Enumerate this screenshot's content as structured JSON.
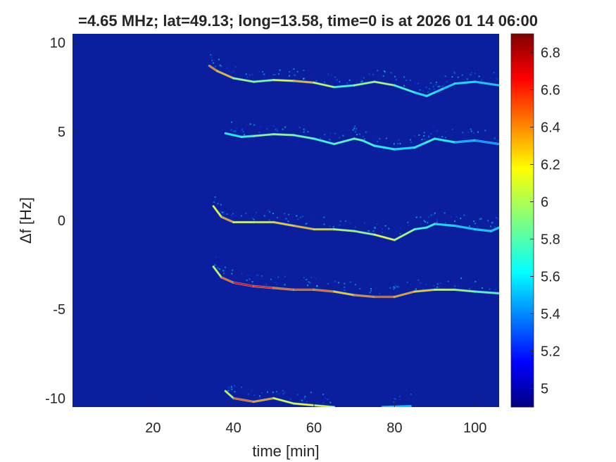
{
  "chart_data": {
    "type": "heatmap",
    "title": "=4.65 MHz;  lat=49.13; long=13.58, time=0 is at 2026 01 14 06:00",
    "xlabel": "time [min]",
    "ylabel": "Δf [Hz]",
    "xlim": [
      0,
      106
    ],
    "ylim": [
      -10.5,
      10.5
    ],
    "x_ticks": [
      20,
      40,
      60,
      80,
      100
    ],
    "y_ticks": [
      -10,
      -5,
      0,
      5,
      10
    ],
    "colorbar": {
      "range": [
        4.9,
        6.9
      ],
      "ticks": [
        5,
        5.2,
        5.4,
        5.6,
        5.8,
        6,
        6.2,
        6.4,
        6.6,
        6.8
      ],
      "colormap": "jet",
      "background_color": "#0b1f9e"
    },
    "traces": [
      {
        "name": "trace-top",
        "points": [
          [
            34,
            8.7
          ],
          [
            36,
            8.4
          ],
          [
            40,
            8.0
          ],
          [
            45,
            7.8
          ],
          [
            50,
            7.9
          ],
          [
            55,
            7.85
          ],
          [
            60,
            7.75
          ],
          [
            65,
            7.5
          ],
          [
            70,
            7.6
          ],
          [
            75,
            7.8
          ],
          [
            80,
            7.6
          ],
          [
            85,
            7.2
          ],
          [
            88,
            7.0
          ],
          [
            90,
            7.2
          ],
          [
            92,
            7.4
          ],
          [
            95,
            7.7
          ],
          [
            100,
            7.8
          ],
          [
            106,
            7.6
          ]
        ],
        "intensity": [
          6.3,
          6.5,
          6.1,
          5.8,
          6.0,
          6.2,
          6.4,
          5.7,
          5.8,
          6.1,
          5.9,
          5.6,
          5.6,
          5.7,
          5.5,
          5.6,
          5.6,
          5.5
        ]
      },
      {
        "name": "trace-upper-mid",
        "points": [
          [
            38,
            4.9
          ],
          [
            42,
            4.7
          ],
          [
            45,
            4.75
          ],
          [
            50,
            4.85
          ],
          [
            55,
            4.8
          ],
          [
            60,
            4.6
          ],
          [
            65,
            4.3
          ],
          [
            70,
            4.6
          ],
          [
            72,
            4.5
          ],
          [
            75,
            4.2
          ],
          [
            80,
            4.0
          ],
          [
            85,
            4.1
          ],
          [
            88,
            4.4
          ],
          [
            90,
            4.6
          ],
          [
            95,
            4.4
          ],
          [
            100,
            4.5
          ],
          [
            106,
            4.3
          ]
        ],
        "intensity": [
          5.6,
          5.7,
          5.8,
          6.0,
          5.9,
          5.8,
          5.7,
          5.9,
          5.8,
          5.7,
          5.6,
          5.6,
          5.7,
          5.8,
          5.5,
          5.5,
          5.4
        ]
      },
      {
        "name": "trace-center",
        "points": [
          [
            35,
            0.8
          ],
          [
            37,
            0.2
          ],
          [
            40,
            -0.1
          ],
          [
            45,
            -0.1
          ],
          [
            50,
            -0.1
          ],
          [
            55,
            -0.3
          ],
          [
            60,
            -0.5
          ],
          [
            65,
            -0.5
          ],
          [
            70,
            -0.6
          ],
          [
            75,
            -0.8
          ],
          [
            80,
            -1.1
          ],
          [
            85,
            -0.5
          ],
          [
            88,
            -0.4
          ],
          [
            90,
            -0.2
          ],
          [
            95,
            -0.3
          ],
          [
            100,
            -0.5
          ],
          [
            104,
            -0.6
          ],
          [
            106,
            -0.4
          ]
        ],
        "intensity": [
          5.8,
          6.5,
          6.2,
          6.1,
          6.3,
          6.2,
          6.4,
          6.1,
          5.9,
          6.0,
          6.3,
          5.7,
          5.8,
          5.6,
          5.6,
          5.5,
          5.6,
          5.5
        ]
      },
      {
        "name": "trace-lower-mid",
        "points": [
          [
            35,
            -2.6
          ],
          [
            37,
            -3.2
          ],
          [
            40,
            -3.5
          ],
          [
            45,
            -3.7
          ],
          [
            50,
            -3.8
          ],
          [
            55,
            -3.9
          ],
          [
            60,
            -3.9
          ],
          [
            65,
            -4.0
          ],
          [
            70,
            -4.2
          ],
          [
            75,
            -4.3
          ],
          [
            80,
            -4.3
          ],
          [
            85,
            -4.0
          ],
          [
            90,
            -3.9
          ],
          [
            95,
            -3.9
          ],
          [
            100,
            -4.0
          ],
          [
            106,
            -4.1
          ]
        ],
        "intensity": [
          5.8,
          6.3,
          6.6,
          6.7,
          6.5,
          6.4,
          6.6,
          6.3,
          6.2,
          6.6,
          6.4,
          6.3,
          6.2,
          6.0,
          5.9,
          5.7
        ]
      },
      {
        "name": "trace-bottom",
        "points": [
          [
            38,
            -9.6
          ],
          [
            40,
            -10.0
          ],
          [
            45,
            -10.2
          ],
          [
            50,
            -10.0
          ],
          [
            55,
            -10.3
          ],
          [
            60,
            -10.4
          ],
          [
            65,
            -10.5
          ]
        ],
        "intensity": [
          5.7,
          6.4,
          6.5,
          6.2,
          6.0,
          6.3,
          5.8
        ]
      },
      {
        "name": "trace-bottom-stub",
        "points": [
          [
            77,
            -10.5
          ],
          [
            84,
            -10.45
          ]
        ],
        "intensity": [
          5.5,
          5.6
        ]
      }
    ]
  }
}
